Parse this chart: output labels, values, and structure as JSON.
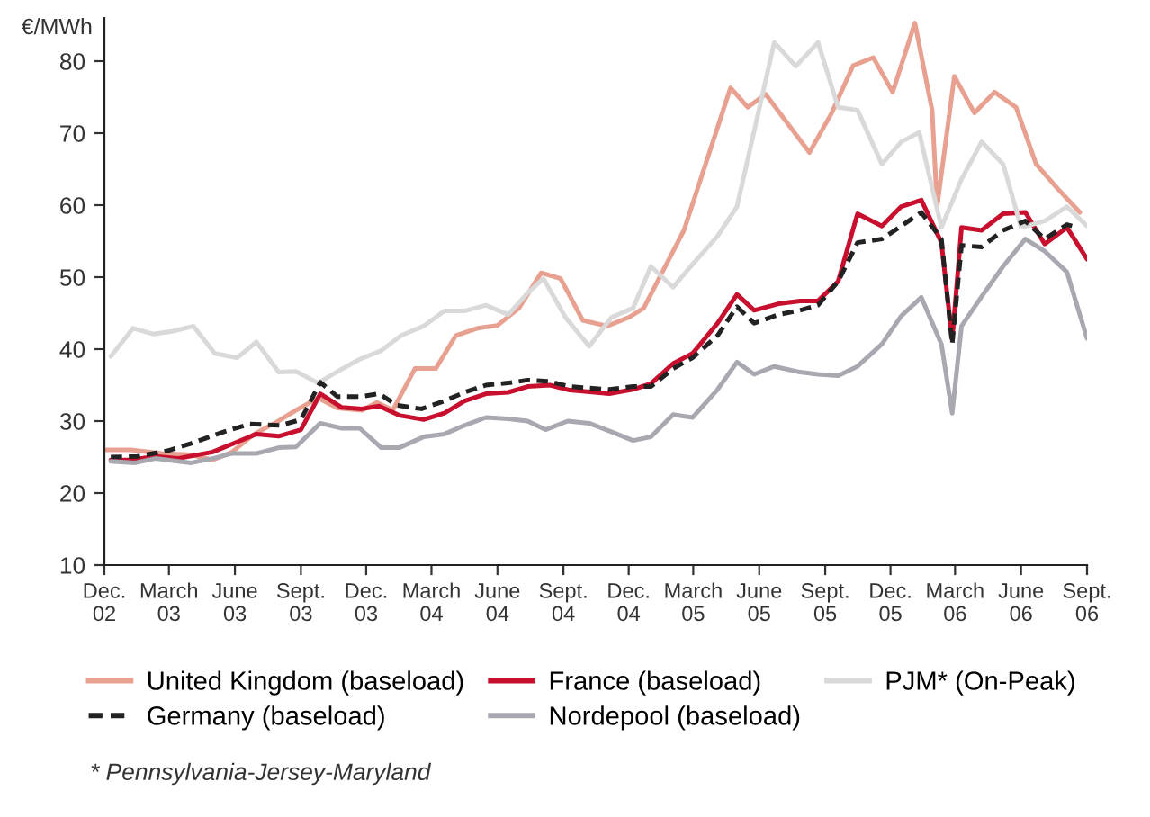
{
  "chart_data": {
    "type": "line",
    "ylabel": "€/MWh",
    "ylim": [
      10,
      86
    ],
    "yticks": [
      10,
      20,
      30,
      40,
      50,
      60,
      70,
      80
    ],
    "xlim": [
      "2002-12-01",
      "2006-09-01"
    ],
    "xticks": [
      {
        "value": "2002-12-01",
        "label": "Dec.\n02"
      },
      {
        "value": "2003-03-01",
        "label": "March\n03"
      },
      {
        "value": "2003-06-01",
        "label": "June\n03"
      },
      {
        "value": "2003-09-01",
        "label": "Sept.\n03"
      },
      {
        "value": "2003-12-01",
        "label": "Dec.\n03"
      },
      {
        "value": "2004-03-01",
        "label": "March\n04"
      },
      {
        "value": "2004-06-01",
        "label": "June\n04"
      },
      {
        "value": "2004-09-01",
        "label": "Sept.\n04"
      },
      {
        "value": "2004-12-01",
        "label": "Dec.\n04"
      },
      {
        "value": "2005-03-01",
        "label": "March\n05"
      },
      {
        "value": "2005-06-01",
        "label": "June\n05"
      },
      {
        "value": "2005-09-01",
        "label": "Sept.\n05"
      },
      {
        "value": "2005-12-01",
        "label": "Dec.\n05"
      },
      {
        "value": "2006-03-01",
        "label": "March\n06"
      },
      {
        "value": "2006-06-01",
        "label": "June\n06"
      },
      {
        "value": "2006-09-01",
        "label": "Sept.\n06"
      }
    ],
    "grid": false,
    "legend": "bottom",
    "marker": "none",
    "series": [
      {
        "name": "United Kingdom (baseload)",
        "color": "#e8a090",
        "line_style": "solid",
        "x": [
          "2002-12-01",
          "2003-01-07",
          "2003-02-19",
          "2003-04-01",
          "2003-05-01",
          "2003-05-28",
          "2003-06-28",
          "2003-07-28",
          "2003-08-25",
          "2003-09-25",
          "2003-10-22",
          "2003-11-25",
          "2003-12-16",
          "2004-01-07",
          "2004-02-07",
          "2004-03-07",
          "2004-04-04",
          "2004-05-04",
          "2004-06-01",
          "2004-07-01",
          "2004-08-01",
          "2004-08-28",
          "2004-09-28",
          "2004-11-01",
          "2004-12-01",
          "2004-12-22",
          "2005-02-16",
          "2005-04-22",
          "2005-05-16",
          "2005-06-10",
          "2005-08-10",
          "2005-09-10",
          "2005-10-10",
          "2005-11-07",
          "2005-12-04",
          "2006-01-04",
          "2006-01-28",
          "2006-02-04",
          "2006-02-28",
          "2006-03-28",
          "2006-04-25",
          "2006-05-25",
          "2006-06-22",
          "2006-07-22",
          "2006-08-22"
        ],
        "values": [
          26,
          26,
          25.5,
          25.3,
          24.6,
          25.7,
          28.2,
          29.8,
          31.5,
          33.2,
          31.8,
          31.5,
          32.6,
          31.5,
          37.3,
          37.3,
          41.9,
          42.9,
          43.3,
          45.7,
          50.6,
          49.8,
          44,
          43.2,
          44.4,
          45.7,
          56.5,
          76.3,
          73.6,
          75.4,
          67.3,
          72.8,
          79.4,
          80.5,
          75.7,
          85.3,
          73.2,
          59.8,
          77.9,
          72.8,
          75.7,
          73.6,
          65.7,
          62.3,
          59
        ]
      },
      {
        "name": "France (baseload)",
        "color": "#c8102e",
        "line_style": "solid",
        "x": [
          "2002-12-10",
          "2003-01-07",
          "2003-02-10",
          "2003-03-13",
          "2003-05-01",
          "2003-06-04",
          "2003-07-01",
          "2003-08-01",
          "2003-09-01",
          "2003-09-28",
          "2003-10-28",
          "2003-11-25",
          "2003-12-19",
          "2004-01-16",
          "2004-02-19",
          "2004-03-19",
          "2004-04-16",
          "2004-05-16",
          "2004-06-16",
          "2004-07-13",
          "2004-08-13",
          "2004-09-10",
          "2004-11-04",
          "2004-12-07",
          "2005-01-01",
          "2005-02-01",
          "2005-02-28",
          "2005-04-04",
          "2005-05-01",
          "2005-05-25",
          "2005-06-28",
          "2005-07-28",
          "2005-08-22",
          "2005-09-19",
          "2005-10-16",
          "2005-11-19",
          "2005-12-16",
          "2006-01-13",
          "2006-02-10",
          "2006-02-25",
          "2006-03-10",
          "2006-04-07",
          "2006-05-07",
          "2006-06-07",
          "2006-07-04",
          "2006-08-04",
          "2006-09-01"
        ],
        "values": [
          24.6,
          24.6,
          25.1,
          24.8,
          25.7,
          27.1,
          28.2,
          27.9,
          28.8,
          33.8,
          31.9,
          31.7,
          32.1,
          30.8,
          30.2,
          31.1,
          32.8,
          33.8,
          34,
          34.8,
          35,
          34.3,
          33.8,
          34.4,
          35.2,
          38,
          39.4,
          43.6,
          47.6,
          45.4,
          46.3,
          46.7,
          46.7,
          49.4,
          58.8,
          57.1,
          59.8,
          60.7,
          54.8,
          41.3,
          56.9,
          56.5,
          58.8,
          59,
          54.6,
          56.9,
          52.5
        ]
      },
      {
        "name": "PJM* (On-Peak)",
        "color": "#d9d9d9",
        "line_style": "solid",
        "x": [
          "2002-12-10",
          "2003-01-10",
          "2003-02-07",
          "2003-03-07",
          "2003-04-04",
          "2003-05-04",
          "2003-06-04",
          "2003-07-01",
          "2003-08-01",
          "2003-08-25",
          "2003-09-25",
          "2003-10-22",
          "2003-11-22",
          "2003-12-22",
          "2004-01-19",
          "2004-02-19",
          "2004-03-19",
          "2004-04-16",
          "2004-05-16",
          "2004-06-16",
          "2004-07-13",
          "2004-08-04",
          "2004-09-04",
          "2004-10-07",
          "2004-11-07",
          "2004-12-07",
          "2005-01-01",
          "2005-02-01",
          "2005-03-01",
          "2005-04-04",
          "2005-05-01",
          "2005-06-22",
          "2005-07-22",
          "2005-08-22",
          "2005-09-19",
          "2005-10-16",
          "2005-11-19",
          "2005-12-16",
          "2006-01-10",
          "2006-02-10",
          "2006-03-10",
          "2006-04-07",
          "2006-05-07",
          "2006-06-01",
          "2006-07-04",
          "2006-08-04",
          "2006-09-01"
        ],
        "values": [
          39,
          42.9,
          42.1,
          42.5,
          43.2,
          39.4,
          38.8,
          41,
          36.8,
          36.9,
          35.3,
          36.9,
          38.6,
          39.8,
          41.9,
          43.2,
          45.3,
          45.3,
          46.1,
          44.8,
          47.8,
          49.8,
          44.4,
          40.4,
          44.4,
          45.7,
          51.5,
          48.6,
          51.9,
          55.7,
          59.8,
          82.6,
          79.3,
          82.6,
          73.6,
          73.2,
          65.7,
          68.8,
          70.1,
          56.9,
          63.6,
          68.8,
          65.7,
          56.9,
          57.8,
          59.8,
          57.1
        ]
      },
      {
        "name": "Germany (baseload)",
        "color": "#222222",
        "line_style": "dashed",
        "x": [
          "2002-12-10",
          "2003-01-16",
          "2003-02-28",
          "2003-04-01",
          "2003-05-13",
          "2003-06-22",
          "2003-08-04",
          "2003-09-01",
          "2003-09-28",
          "2003-10-22",
          "2003-11-22",
          "2003-12-19",
          "2004-01-13",
          "2004-02-16",
          "2004-03-19",
          "2004-04-16",
          "2004-05-16",
          "2004-06-16",
          "2004-07-13",
          "2004-08-13",
          "2004-09-10",
          "2004-11-04",
          "2004-12-07",
          "2005-01-01",
          "2005-02-01",
          "2005-02-28",
          "2005-04-04",
          "2005-05-01",
          "2005-05-25",
          "2005-06-28",
          "2005-07-28",
          "2005-08-22",
          "2005-09-19",
          "2005-10-16",
          "2005-11-19",
          "2005-12-16",
          "2006-01-13",
          "2006-02-10",
          "2006-02-25",
          "2006-03-10",
          "2006-04-07",
          "2006-05-07",
          "2006-06-07",
          "2006-07-04",
          "2006-08-04",
          "2006-08-19"
        ],
        "values": [
          25,
          25.1,
          25.9,
          26.9,
          28.4,
          29.6,
          29.4,
          30.2,
          35.4,
          33.4,
          33.4,
          33.8,
          32.2,
          31.7,
          32.8,
          34,
          35,
          35.3,
          35.7,
          35.5,
          34.8,
          34.4,
          34.8,
          34.8,
          37.3,
          38.8,
          41.9,
          45.9,
          43.6,
          44.8,
          45.4,
          46.1,
          49.4,
          54.8,
          55.3,
          57.1,
          59,
          55.3,
          40.7,
          54.4,
          54.2,
          56.5,
          57.8,
          55.3,
          57.3,
          56.9
        ]
      },
      {
        "name": "Nordepool (baseload)",
        "color": "#a8a8b0",
        "line_style": "solid",
        "x": [
          "2002-12-10",
          "2003-01-13",
          "2003-02-10",
          "2003-04-01",
          "2003-05-01",
          "2003-05-28",
          "2003-07-01",
          "2003-08-01",
          "2003-08-25",
          "2003-09-28",
          "2003-10-28",
          "2003-11-22",
          "2003-12-22",
          "2004-01-16",
          "2004-02-19",
          "2004-03-19",
          "2004-04-16",
          "2004-05-16",
          "2004-06-16",
          "2004-07-13",
          "2004-08-07",
          "2004-09-07",
          "2004-10-07",
          "2004-11-10",
          "2004-12-07",
          "2005-01-01",
          "2005-02-01",
          "2005-02-28",
          "2005-04-04",
          "2005-05-01",
          "2005-05-25",
          "2005-06-22",
          "2005-07-28",
          "2005-08-22",
          "2005-09-19",
          "2005-10-16",
          "2005-11-19",
          "2005-12-16",
          "2006-01-13",
          "2006-02-10",
          "2006-02-25",
          "2006-03-10",
          "2006-04-07",
          "2006-05-07",
          "2006-06-07",
          "2006-07-04",
          "2006-08-04",
          "2006-09-01"
        ],
        "values": [
          24.4,
          24.2,
          24.8,
          24.2,
          24.8,
          25.5,
          25.5,
          26.3,
          26.4,
          29.7,
          29,
          29,
          26.3,
          26.3,
          27.8,
          28.2,
          29.4,
          30.5,
          30.3,
          30,
          28.8,
          30,
          29.7,
          28.4,
          27.3,
          27.8,
          30.9,
          30.5,
          34.4,
          38.2,
          36.5,
          37.6,
          36.8,
          36.5,
          36.3,
          37.6,
          40.7,
          44.6,
          47.2,
          40.7,
          31.1,
          43.2,
          47.3,
          51.5,
          55.3,
          53.6,
          50.7,
          41.5
        ]
      }
    ],
    "annotations": [
      "* Pennsylvania-Jersey-Maryland"
    ]
  }
}
